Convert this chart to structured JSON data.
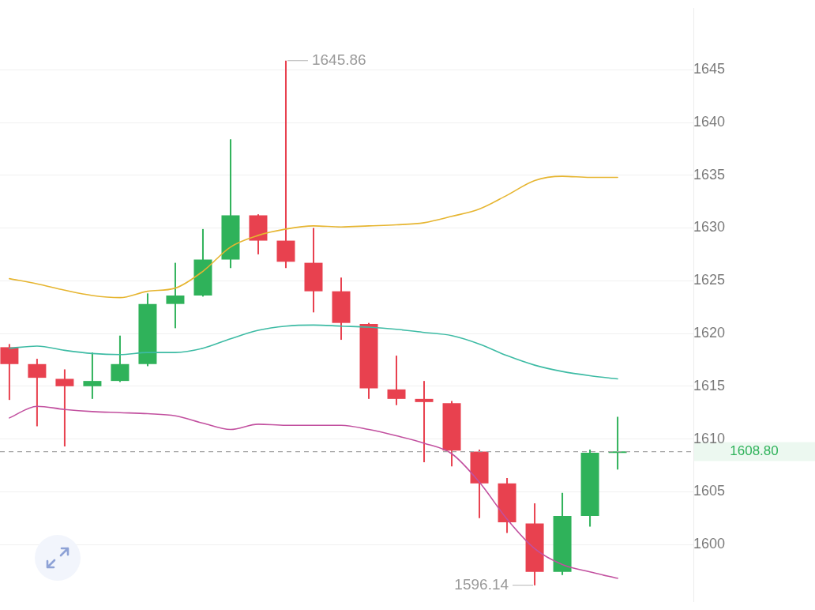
{
  "chart_data": {
    "type": "candlestick",
    "categories": [
      null,
      null,
      null,
      null,
      null,
      null,
      null,
      null,
      null,
      null,
      null,
      null,
      null,
      null,
      null,
      null,
      null,
      null,
      null,
      null,
      null,
      null,
      null
    ],
    "ohlc": [
      [
        1618.7,
        1619.0,
        1613.7,
        1617.1
      ],
      [
        1617.1,
        1617.6,
        1611.2,
        1615.8
      ],
      [
        1615.7,
        1616.6,
        1609.3,
        1615.0
      ],
      [
        1615.0,
        1618.2,
        1613.8,
        1615.5
      ],
      [
        1615.5,
        1619.8,
        1615.4,
        1617.1
      ],
      [
        1617.1,
        1623.8,
        1616.9,
        1622.8
      ],
      [
        1622.8,
        1626.7,
        1620.5,
        1623.6
      ],
      [
        1623.6,
        1629.9,
        1623.5,
        1627.0
      ],
      [
        1627.0,
        1638.4,
        1626.2,
        1631.2
      ],
      [
        1631.2,
        1631.3,
        1627.5,
        1628.8
      ],
      [
        1628.8,
        1645.86,
        1626.2,
        1626.8
      ],
      [
        1626.7,
        1630.0,
        1622.0,
        1624.0
      ],
      [
        1624.0,
        1625.3,
        1619.4,
        1621.0
      ],
      [
        1620.9,
        1621.0,
        1613.8,
        1614.8
      ],
      [
        1614.7,
        1617.9,
        1613.2,
        1613.8
      ],
      [
        1613.8,
        1615.5,
        1607.8,
        1613.5
      ],
      [
        1613.4,
        1613.6,
        1607.4,
        1608.9
      ],
      [
        1608.8,
        1609.0,
        1602.5,
        1605.8
      ],
      [
        1605.8,
        1606.3,
        1601.1,
        1602.1
      ],
      [
        1602.0,
        1603.9,
        1596.14,
        1597.4
      ],
      [
        1597.4,
        1604.9,
        1597.1,
        1602.7
      ],
      [
        1602.7,
        1609.0,
        1601.7,
        1608.7
      ],
      [
        1608.7,
        1612.1,
        1607.1,
        1608.8
      ]
    ],
    "colors": [
      "#e8414f",
      "#e8414f",
      "#e8414f",
      "#2fb25a",
      "#2fb25a",
      "#2fb25a",
      "#2fb25a",
      "#2fb25a",
      "#2fb25a",
      "#e8414f",
      "#e8414f",
      "#e8414f",
      "#e8414f",
      "#e8414f",
      "#e8414f",
      "#e8414f",
      "#e8414f",
      "#e8414f",
      "#e8414f",
      "#e8414f",
      "#2fb25a",
      "#2fb25a",
      "#2fb25a"
    ],
    "series": [
      {
        "type": "line",
        "color": "#e6b530",
        "values": [
          1625.2,
          1624.7,
          1624.1,
          1623.6,
          1623.4,
          1624.0,
          1624.3,
          1625.9,
          1628.2,
          1629.3,
          1629.9,
          1630.2,
          1630.1,
          1630.2,
          1630.3,
          1630.5,
          1631.1,
          1631.8,
          1633.1,
          1634.5,
          1634.9,
          1634.8,
          1634.8
        ]
      },
      {
        "type": "line",
        "color": "#3dbba4",
        "values": [
          1618.6,
          1618.8,
          1618.4,
          1618.1,
          1618.0,
          1618.2,
          1618.2,
          1618.6,
          1619.5,
          1620.3,
          1620.7,
          1620.8,
          1620.7,
          1620.6,
          1620.4,
          1620.1,
          1619.8,
          1619.0,
          1617.9,
          1617.0,
          1616.4,
          1616.0,
          1615.7
        ]
      },
      {
        "type": "line",
        "color": "#c2509f",
        "values": [
          1612.0,
          1613.1,
          1612.8,
          1612.6,
          1612.5,
          1612.4,
          1612.2,
          1611.5,
          1610.9,
          1611.4,
          1611.3,
          1611.3,
          1611.3,
          1610.9,
          1610.3,
          1609.6,
          1608.6,
          1605.9,
          1602.4,
          1599.6,
          1598.1,
          1597.4,
          1596.8
        ]
      }
    ],
    "ylim": [
      1594.6,
      1650.8
    ],
    "yticks": [
      1600,
      1605,
      1610,
      1615,
      1620,
      1625,
      1630,
      1635,
      1640,
      1645
    ],
    "ref_lines": [
      {
        "axis": "y",
        "value": 1608.8,
        "label": "1608.80",
        "color": "#a3a3a3",
        "line_style": "dashed"
      }
    ],
    "annotations": [
      "1645.86",
      "1596.14"
    ],
    "grid": "y",
    "tick_labels": "y",
    "marker": "none"
  }
}
